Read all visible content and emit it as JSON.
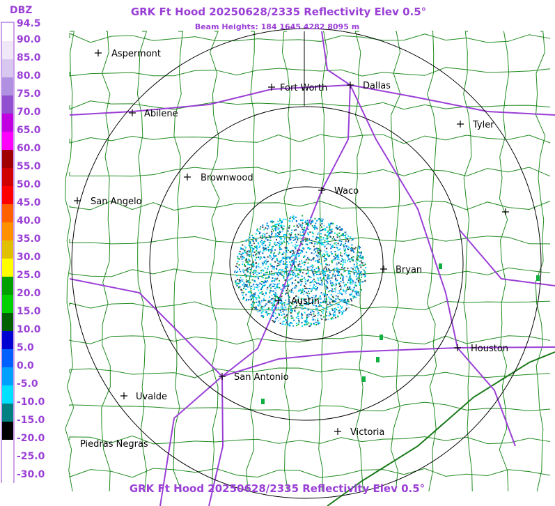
{
  "header": {
    "title": "GRK Ft Hood 20250628/2335 Reflectivity Elev 0.5°",
    "subtitle": "Beam Heights: 184 1645 4282 8095 m"
  },
  "footer": {
    "title": "GRK Ft Hood 20250628/2335 Reflectivity Elev 0.5°"
  },
  "legend": {
    "unit": "DBZ",
    "labels": [
      "94.5",
      "90.0",
      "85.0",
      "80.0",
      "75.0",
      "70.0",
      "65.0",
      "60.0",
      "55.0",
      "50.0",
      "45.0",
      "40.0",
      "35.0",
      "30.0",
      "25.0",
      "20.0",
      "15.0",
      "10.0",
      "5.0",
      "0.0",
      "-5.0",
      "-10.0",
      "-15.0",
      "-20.0",
      "-25.0",
      "-30.0"
    ]
  },
  "cities": [
    "Aspermont",
    "Fort Worth",
    "Dallas",
    "Abilene",
    "Tyler",
    "Brownwood",
    "Waco",
    "San Angelo",
    "Bryan",
    "Austin",
    "Houston",
    "San Antonio",
    "Uvalde",
    "Victoria",
    "Piedras Negras"
  ]
}
